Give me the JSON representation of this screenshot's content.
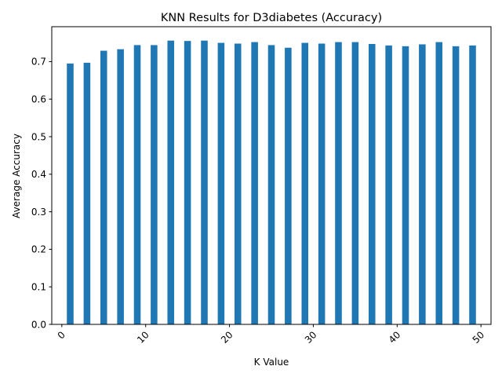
{
  "colors": {
    "bar": "#1f77b4",
    "axis": "#000000",
    "background": "#ffffff"
  },
  "chart_data": {
    "type": "bar",
    "title": "KNN Results for D3diabetes (Accuracy)",
    "xlabel": "K Value",
    "ylabel": "Average Accuracy",
    "x": [
      1,
      3,
      5,
      7,
      9,
      11,
      13,
      15,
      17,
      19,
      21,
      23,
      25,
      27,
      29,
      31,
      33,
      35,
      37,
      39,
      41,
      43,
      45,
      47,
      49
    ],
    "values": [
      0.695,
      0.697,
      0.729,
      0.733,
      0.744,
      0.744,
      0.756,
      0.755,
      0.756,
      0.75,
      0.748,
      0.752,
      0.744,
      0.737,
      0.75,
      0.748,
      0.752,
      0.752,
      0.747,
      0.743,
      0.741,
      0.746,
      0.752,
      0.741,
      0.743
    ],
    "xlim": [
      -1.2,
      51.2
    ],
    "ylim": [
      0,
      0.793
    ],
    "xticks": [
      "0",
      "10",
      "20",
      "30",
      "40",
      "50"
    ],
    "yticks": [
      "0.0",
      "0.1",
      "0.2",
      "0.3",
      "0.4",
      "0.5",
      "0.6",
      "0.7"
    ],
    "grid": false,
    "legend": "none"
  }
}
